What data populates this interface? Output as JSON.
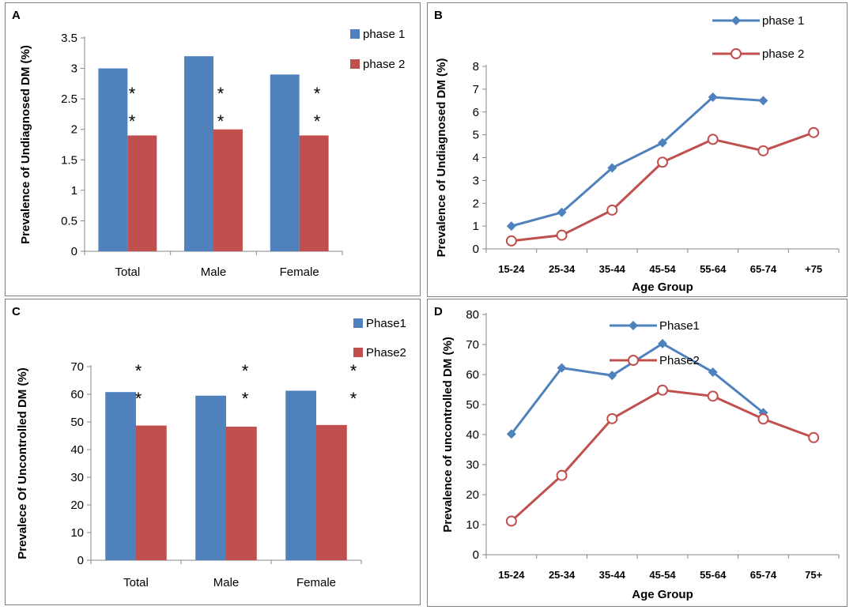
{
  "colors": {
    "phase1": "#4f81bd",
    "phase2": "#c0504d",
    "axis": "#868686"
  },
  "chart_data": [
    {
      "panel": "A",
      "type": "bar",
      "title": "",
      "xlabel": "",
      "ylabel": "Prevalence of Undiagnosed DM (%)",
      "categories": [
        "Total",
        "Male",
        "Female"
      ],
      "series": [
        {
          "name": "phase 1",
          "values": [
            3.0,
            3.2,
            2.9
          ]
        },
        {
          "name": "phase 2",
          "values": [
            1.9,
            2.0,
            1.9
          ]
        }
      ],
      "ylim": [
        0,
        3.5
      ],
      "yticks": [
        0,
        0.5,
        1,
        1.5,
        2,
        2.5,
        3,
        3.5
      ],
      "annotations": [
        "*",
        "*"
      ],
      "legend": "top-right"
    },
    {
      "panel": "B",
      "type": "line",
      "title": "",
      "xlabel": "Age Group",
      "ylabel": "Prevalence of Undiagnosed DM (%)",
      "categories": [
        "15-24",
        "25-34",
        "35-44",
        "45-54",
        "55-64",
        "65-74",
        "+75"
      ],
      "series": [
        {
          "name": "phase 1",
          "values": [
            1.0,
            1.6,
            3.55,
            4.65,
            6.65,
            6.5,
            null
          ]
        },
        {
          "name": "phase 2",
          "values": [
            0.35,
            0.6,
            1.7,
            3.8,
            4.8,
            4.3,
            5.1
          ]
        }
      ],
      "ylim": [
        0,
        8
      ],
      "yticks": [
        0,
        1,
        2,
        3,
        4,
        5,
        6,
        7,
        8
      ],
      "legend": "top-right"
    },
    {
      "panel": "C",
      "type": "bar",
      "title": "",
      "xlabel": "",
      "ylabel": "Prevalece Of Uncontrolled DM (%)",
      "categories": [
        "Total",
        "Male",
        "Female"
      ],
      "series": [
        {
          "name": "Phase1",
          "values": [
            60.8,
            59.5,
            61.3
          ]
        },
        {
          "name": "Phase2",
          "values": [
            48.7,
            48.3,
            48.9
          ]
        }
      ],
      "ylim": [
        0,
        70
      ],
      "yticks": [
        0,
        10,
        20,
        30,
        40,
        50,
        60,
        70
      ],
      "annotations": [
        "*",
        "*"
      ],
      "legend": "top-right"
    },
    {
      "panel": "D",
      "type": "line",
      "title": "",
      "xlabel": "Age Group",
      "ylabel": "Prevalence of uncontrolled DM (%)",
      "categories": [
        "15-24",
        "25-34",
        "35-44",
        "45-54",
        "55-64",
        "65-74",
        "75+"
      ],
      "series": [
        {
          "name": "Phase1",
          "values": [
            40.2,
            62.2,
            59.7,
            70.3,
            60.8,
            47.3,
            null
          ]
        },
        {
          "name": "Phase2",
          "values": [
            11.2,
            26.4,
            45.3,
            54.8,
            52.8,
            45.2,
            39.0
          ]
        }
      ],
      "ylim": [
        0,
        80
      ],
      "yticks": [
        0,
        10,
        20,
        30,
        40,
        50,
        60,
        70,
        80
      ],
      "legend": "top-right"
    }
  ]
}
